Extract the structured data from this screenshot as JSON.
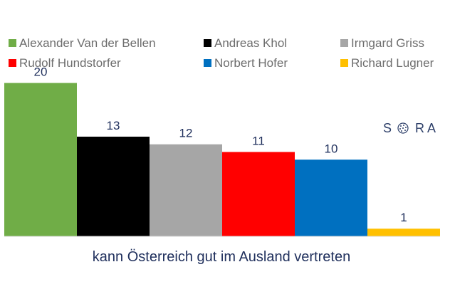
{
  "chart_data": {
    "type": "bar",
    "categories": [
      "Alexander Van der Bellen",
      "Andreas Khol",
      "Irmgard Griss",
      "Rudolf Hundstorfer",
      "Norbert Hofer",
      "Richard Lugner"
    ],
    "values": [
      20,
      13,
      12,
      11,
      10,
      1
    ],
    "colors": [
      "#70ad47",
      "#000000",
      "#a6a6a6",
      "#ff0000",
      "#0070c0",
      "#ffc000"
    ],
    "xlabel": "kann Österreich gut im Ausland vertreten",
    "ylabel": "",
    "ylim": [
      0,
      22
    ],
    "grid": false,
    "legend": {
      "position": "top",
      "entries": [
        "Alexander Van der Bellen",
        "Andreas Khol",
        "Irmgard Griss",
        "Rudolf Hundstorfer",
        "Norbert Hofer",
        "Richard Lugner"
      ]
    }
  },
  "logo": {
    "left_letter": "S",
    "right_letters": "R A",
    "icon": "globe-icon"
  }
}
